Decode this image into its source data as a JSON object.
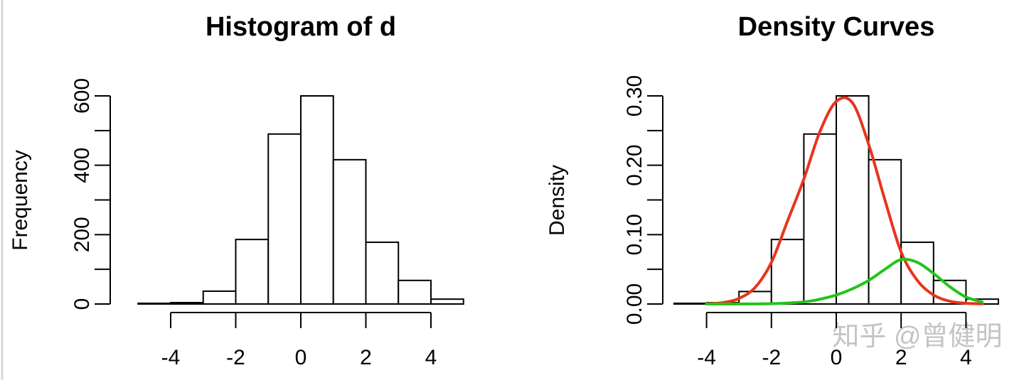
{
  "chart_data": [
    {
      "type": "histogram",
      "title": "Histogram of d",
      "ylabel": "Frequency",
      "bins": [
        -5,
        -4,
        -3,
        -2,
        -1,
        0,
        1,
        2,
        3,
        4,
        5
      ],
      "values": [
        2,
        4,
        37,
        186,
        490,
        600,
        416,
        178,
        68,
        14
      ],
      "xlim": [
        -4,
        4
      ],
      "xticks": [
        -4,
        -2,
        0,
        2,
        4
      ],
      "ylim": [
        0,
        600
      ],
      "yticks": [
        0,
        {
          "value": 100,
          "label": null
        },
        200,
        {
          "value": 300,
          "label": null
        },
        400,
        {
          "value": 500,
          "label": null
        },
        600
      ]
    },
    {
      "type": "histogram",
      "title": "Density Curves",
      "ylabel": "Density",
      "bins": [
        -5,
        -4,
        -3,
        -2,
        -1,
        0,
        1,
        2,
        3,
        4,
        5
      ],
      "values": [
        0.001,
        0.002,
        0.018,
        0.093,
        0.245,
        0.3,
        0.208,
        0.089,
        0.034,
        0.007
      ],
      "xlim": [
        -4,
        4
      ],
      "xticks": [
        -4,
        -2,
        0,
        2,
        4
      ],
      "ylim": [
        0,
        0.3
      ],
      "yticks": [
        {
          "value": 0,
          "label": "0.00"
        },
        {
          "value": 0.05,
          "label": null
        },
        {
          "value": 0.1,
          "label": "0.10"
        },
        {
          "value": 0.15,
          "label": null
        },
        {
          "value": 0.2,
          "label": "0.20"
        },
        {
          "value": 0.25,
          "label": null
        },
        {
          "value": 0.3,
          "label": "0.30"
        }
      ],
      "curves": [
        {
          "color": "#e8341c",
          "x": [
            -4,
            -3.5,
            -3,
            -2.5,
            -2,
            -1.5,
            -1,
            -0.5,
            0,
            0.5,
            1,
            1.5,
            2,
            2.5,
            3,
            3.5,
            4,
            4.5
          ],
          "values": [
            0.0005,
            0.002,
            0.008,
            0.024,
            0.06,
            0.12,
            0.18,
            0.249,
            0.292,
            0.29,
            0.23,
            0.15,
            0.075,
            0.034,
            0.013,
            0.004,
            0.001,
            0.0003
          ]
        },
        {
          "color": "#22c41a",
          "x": [
            -4,
            -3,
            -2,
            -1,
            -0.5,
            0,
            0.5,
            1,
            1.5,
            2,
            2.5,
            3,
            3.5,
            4,
            4.5
          ],
          "values": [
            0,
            0.0001,
            0.0005,
            0.003,
            0.007,
            0.013,
            0.022,
            0.034,
            0.05,
            0.064,
            0.06,
            0.044,
            0.025,
            0.01,
            0.003
          ]
        }
      ]
    }
  ],
  "watermark": "知乎 @曾健明"
}
